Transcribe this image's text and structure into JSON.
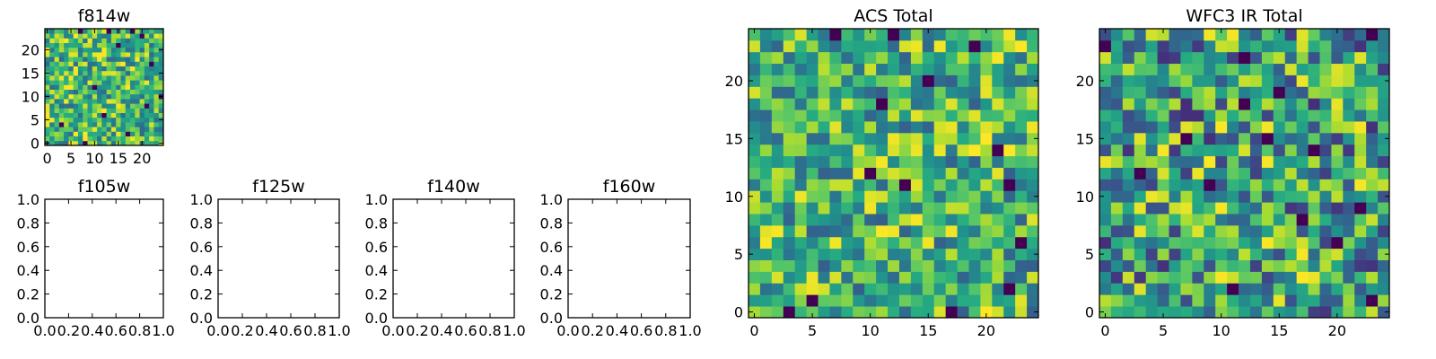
{
  "chart_data": [
    {
      "type": "heatmap",
      "title": "f814w",
      "grid_size": 25,
      "xlim": [
        -0.5,
        24.5
      ],
      "ylim": [
        -0.5,
        24.5
      ],
      "xticks": [
        0,
        5,
        10,
        15,
        20
      ],
      "yticks": [
        0,
        5,
        10,
        15,
        20
      ],
      "colormap": "viridis",
      "seed": 814,
      "value_bias": 0.35,
      "dark_cells": [
        [
          7,
          24
        ],
        [
          13,
          24
        ],
        [
          18,
          24
        ],
        [
          20,
          23
        ],
        [
          15,
          21
        ],
        [
          22,
          17
        ],
        [
          10,
          12
        ],
        [
          3,
          4
        ],
        [
          12,
          6
        ],
        [
          17,
          2
        ],
        [
          21,
          8
        ],
        [
          8,
          0
        ],
        [
          24,
          10
        ]
      ]
    },
    {
      "type": "heatmap",
      "title": "f105w",
      "xlim": [
        0,
        1
      ],
      "ylim": [
        0,
        1
      ],
      "xticks": [
        0.0,
        0.2,
        0.4,
        0.6,
        0.8,
        1.0
      ],
      "yticks": [
        0.0,
        0.2,
        0.4,
        0.6,
        0.8,
        1.0
      ],
      "xtick_labels": [
        "0.0",
        "0.2",
        "0.4",
        "0.6",
        "0.8",
        "1.0"
      ],
      "ytick_labels": [
        "0.0",
        "0.2",
        "0.4",
        "0.6",
        "0.8",
        "1.0"
      ],
      "empty": true
    },
    {
      "type": "heatmap",
      "title": "f125w",
      "xlim": [
        0,
        1
      ],
      "ylim": [
        0,
        1
      ],
      "xticks": [
        0.0,
        0.2,
        0.4,
        0.6,
        0.8,
        1.0
      ],
      "yticks": [
        0.0,
        0.2,
        0.4,
        0.6,
        0.8,
        1.0
      ],
      "xtick_labels": [
        "0.0",
        "0.2",
        "0.4",
        "0.6",
        "0.8",
        "1.0"
      ],
      "ytick_labels": [
        "0.0",
        "0.2",
        "0.4",
        "0.6",
        "0.8",
        "1.0"
      ],
      "empty": true
    },
    {
      "type": "heatmap",
      "title": "f140w",
      "xlim": [
        0,
        1
      ],
      "ylim": [
        0,
        1
      ],
      "xticks": [
        0.0,
        0.2,
        0.4,
        0.6,
        0.8,
        1.0
      ],
      "yticks": [
        0.0,
        0.2,
        0.4,
        0.6,
        0.8,
        1.0
      ],
      "xtick_labels": [
        "0.0",
        "0.2",
        "0.4",
        "0.6",
        "0.8",
        "1.0"
      ],
      "ytick_labels": [
        "0.0",
        "0.2",
        "0.4",
        "0.6",
        "0.8",
        "1.0"
      ],
      "empty": true
    },
    {
      "type": "heatmap",
      "title": "f160w",
      "xlim": [
        0,
        1
      ],
      "ylim": [
        0,
        1
      ],
      "xticks": [
        0.0,
        0.2,
        0.4,
        0.6,
        0.8,
        1.0
      ],
      "yticks": [
        0.0,
        0.2,
        0.4,
        0.6,
        0.8,
        1.0
      ],
      "xtick_labels": [
        "0.0",
        "0.2",
        "0.4",
        "0.6",
        "0.8",
        "1.0"
      ],
      "ytick_labels": [
        "0.0",
        "0.2",
        "0.4",
        "0.6",
        "0.8",
        "1.0"
      ],
      "empty": true
    },
    {
      "type": "heatmap",
      "title": "ACS Total",
      "grid_size": 25,
      "xlim": [
        -0.5,
        24.5
      ],
      "ylim": [
        -0.5,
        24.5
      ],
      "xticks": [
        0,
        5,
        10,
        15,
        20
      ],
      "yticks": [
        0,
        5,
        10,
        15,
        20
      ],
      "colormap": "viridis",
      "seed": 2024,
      "value_bias": 0.3,
      "dark_cells": [
        [
          7,
          24
        ],
        [
          12,
          24
        ],
        [
          19,
          23
        ],
        [
          15,
          20
        ],
        [
          11,
          18
        ],
        [
          21,
          14
        ],
        [
          10,
          12
        ],
        [
          13,
          11
        ],
        [
          22,
          11
        ],
        [
          5,
          1
        ],
        [
          22,
          2
        ],
        [
          3,
          0
        ],
        [
          17,
          0
        ],
        [
          23,
          6
        ]
      ]
    },
    {
      "type": "heatmap",
      "title": "WFC3 IR Total",
      "grid_size": 25,
      "xlim": [
        -0.5,
        24.5
      ],
      "ylim": [
        -0.5,
        24.5
      ],
      "xticks": [
        0,
        5,
        10,
        15,
        20
      ],
      "yticks": [
        0,
        5,
        10,
        15,
        20
      ],
      "colormap": "viridis",
      "seed": 3031,
      "value_bias": 0.15,
      "dark_cells": [
        [
          0,
          23
        ],
        [
          12,
          22
        ],
        [
          23,
          24
        ],
        [
          12,
          18
        ],
        [
          15,
          19
        ],
        [
          7,
          15
        ],
        [
          18,
          14
        ],
        [
          3,
          12
        ],
        [
          9,
          11
        ],
        [
          14,
          15
        ],
        [
          22,
          9
        ],
        [
          17,
          8
        ],
        [
          11,
          2
        ],
        [
          23,
          1
        ],
        [
          20,
          6
        ]
      ]
    }
  ]
}
